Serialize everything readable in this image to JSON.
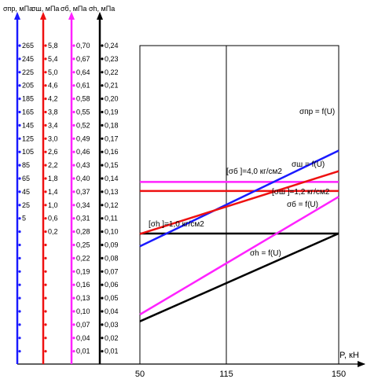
{
  "chart_data": {
    "type": "line",
    "xlabel": "P, кН",
    "x_ticks": [
      50,
      115,
      150
    ],
    "xlim": [
      50,
      150
    ],
    "grid": true,
    "stress_scales": [
      {
        "id": "pr",
        "title": "σпр, мПа",
        "color": "#1a1aff",
        "ticks": [
          "265",
          "245",
          "225",
          "205",
          "185",
          "165",
          "145",
          "125",
          "105",
          "85",
          "65",
          "45",
          "25",
          "5"
        ],
        "range_at_chart_frame": [
          280,
          -3
        ]
      },
      {
        "id": "sh",
        "title": "σш, мПа",
        "color": "#ee1111",
        "ticks": [
          "5,8",
          "5,4",
          "5,0",
          "4,6",
          "4,2",
          "3,8",
          "3,4",
          "3,0",
          "2,6",
          "2,2",
          "1,8",
          "1,4",
          "1,0",
          "0,6",
          "0,2"
        ],
        "range_at_chart_frame": [
          6.1,
          -1.0
        ]
      },
      {
        "id": "b",
        "title": "σб, мПа",
        "color": "#ff22ff",
        "ticks": [
          "0,70",
          "0,67",
          "0,64",
          "0,61",
          "0,58",
          "0,55",
          "0,52",
          "0,49",
          "0,46",
          "0,43",
          "0,40",
          "0,37",
          "0,34",
          "0,31",
          "0,28",
          "0,25",
          "0,22",
          "0,19",
          "0,16",
          "0,13",
          "0,10",
          "0,07",
          "0,04",
          "0,01"
        ],
        "range_at_chart_frame": [
          0.7225,
          -0.0075
        ]
      },
      {
        "id": "h",
        "title": "σh, мПа",
        "color": "#000000",
        "ticks": [
          "0,24",
          "0,23",
          "0,22",
          "0,21",
          "0,20",
          "0,19",
          "0,18",
          "0,17",
          "0,16",
          "0,15",
          "0,14",
          "0,13",
          "0,12",
          "0,11",
          "0,10",
          "0,09",
          "0,08",
          "0,07",
          "0,06",
          "0,05",
          "0,04",
          "0,03",
          "0,02",
          "0,01"
        ],
        "range_at_chart_frame": [
          0.2475,
          -0.0025
        ]
      }
    ],
    "series": [
      {
        "name": "σпр = f(U)",
        "scale": "pr",
        "color": "#1a1aff",
        "x": [
          50,
          150
        ],
        "y": [
          101.6,
          186.7
        ]
      },
      {
        "name": "σш = f(U)",
        "scale": "sh",
        "color": "#ee1111",
        "x": [
          50,
          150
        ],
        "y": [
          1.9,
          3.3
        ]
      },
      {
        "name": "σб = f(U)",
        "scale": "b",
        "color": "#ff22ff",
        "x": [
          50,
          150
        ],
        "y": [
          0.106,
          0.376
        ]
      },
      {
        "name": "σh = f(U)",
        "scale": "h",
        "color": "#000000",
        "x": [
          50,
          150
        ],
        "y": [
          0.031,
          0.1
        ]
      }
    ],
    "limits": [
      {
        "label": "[σб ]=4,0 кг/см2",
        "scale": "b",
        "color": "#ff22ff",
        "value": 0.41
      },
      {
        "label": "[σш ]=1,2 кг/см2",
        "scale": "sh",
        "color": "#ee1111",
        "value": 2.86
      },
      {
        "label": "[σh ]=1,0 кг/см2",
        "scale": "h",
        "color": "#000000",
        "value": 0.1
      }
    ],
    "annotations": [
      {
        "text": "σпр = f(U)",
        "series": 0
      },
      {
        "text": "σш = f(U)",
        "series": 1
      },
      {
        "text": "σб = f(U)",
        "series": 2
      },
      {
        "text": "σh = f(U)",
        "series": 3
      }
    ]
  }
}
